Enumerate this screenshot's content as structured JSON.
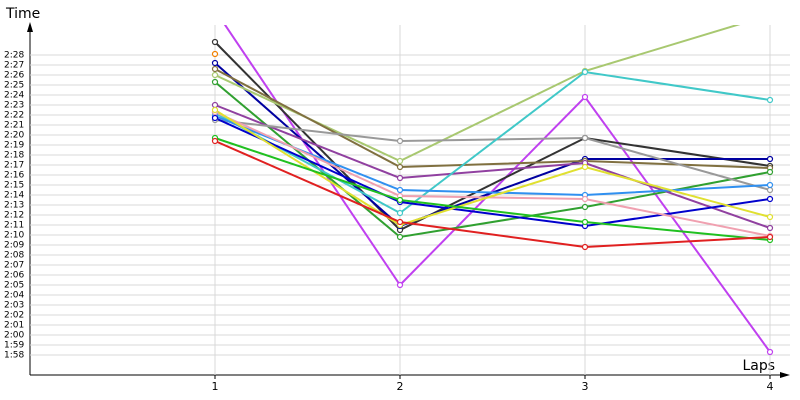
{
  "chart_data": {
    "type": "line",
    "y_label": "Time",
    "x_label": "Laps",
    "xlim": [
      0,
      4
    ],
    "xticks": [
      1,
      2,
      3,
      4
    ],
    "ylim": [
      116,
      151
    ],
    "yticks": [
      {
        "value": 118,
        "label": "1:58"
      },
      {
        "value": 119,
        "label": "1:59"
      },
      {
        "value": 120,
        "label": "2:00"
      },
      {
        "value": 121,
        "label": "2:01"
      },
      {
        "value": 122,
        "label": "2:02"
      },
      {
        "value": 123,
        "label": "2:03"
      },
      {
        "value": 124,
        "label": "2:04"
      },
      {
        "value": 125,
        "label": "2:05"
      },
      {
        "value": 126,
        "label": "2:06"
      },
      {
        "value": 127,
        "label": "2:07"
      },
      {
        "value": 128,
        "label": "2:08"
      },
      {
        "value": 129,
        "label": "2:09"
      },
      {
        "value": 130,
        "label": "2:10"
      },
      {
        "value": 131,
        "label": "2:11"
      },
      {
        "value": 132,
        "label": "2:12"
      },
      {
        "value": 133,
        "label": "2:13"
      },
      {
        "value": 134,
        "label": "2:14"
      },
      {
        "value": 135,
        "label": "2:15"
      },
      {
        "value": 136,
        "label": "2:16"
      },
      {
        "value": 137,
        "label": "2:17"
      },
      {
        "value": 138,
        "label": "2:18"
      },
      {
        "value": 139,
        "label": "2:19"
      },
      {
        "value": 140,
        "label": "2:20"
      },
      {
        "value": 141,
        "label": "2:21"
      },
      {
        "value": 142,
        "label": "2:22"
      },
      {
        "value": 143,
        "label": "2:23"
      },
      {
        "value": 144,
        "label": "2:24"
      },
      {
        "value": 145,
        "label": "2:25"
      },
      {
        "value": 146,
        "label": "2:26"
      },
      {
        "value": 147,
        "label": "2:27"
      },
      {
        "value": 148,
        "label": "2:28"
      }
    ],
    "grid": true,
    "x": [
      1,
      2,
      3,
      4
    ],
    "series": [
      {
        "color": "#c040f0",
        "values": [
          152.5,
          125.0,
          143.8,
          118.3
        ]
      },
      {
        "color": "#333333",
        "values": [
          149.3,
          130.5,
          139.7,
          136.9
        ]
      },
      {
        "color": "#f08000",
        "values": [
          148.1,
          null,
          null,
          null
        ]
      },
      {
        "color": "#0000a0",
        "values": [
          147.2,
          130.9,
          137.6,
          137.6
        ]
      },
      {
        "color": "#a8c870",
        "values": [
          146.0,
          137.4,
          146.4,
          152.0
        ]
      },
      {
        "color": "#807040",
        "values": [
          146.6,
          136.8,
          137.4,
          136.7
        ]
      },
      {
        "color": "#30a030",
        "values": [
          145.3,
          129.8,
          132.8,
          136.3
        ]
      },
      {
        "color": "#9040a0",
        "values": [
          143.0,
          135.7,
          137.2,
          130.7
        ]
      },
      {
        "color": "#999999",
        "values": [
          141.5,
          139.4,
          139.7,
          134.5
        ]
      },
      {
        "color": "#40c8c8",
        "values": [
          142.2,
          132.2,
          146.3,
          143.5
        ]
      },
      {
        "color": "#3090f0",
        "values": [
          141.9,
          134.5,
          134.0,
          135.0
        ]
      },
      {
        "color": "#0000cc",
        "values": [
          141.7,
          133.3,
          130.9,
          133.6
        ]
      },
      {
        "color": "#f0a0b0",
        "values": [
          142.3,
          133.9,
          133.6,
          129.9
        ]
      },
      {
        "color": "#e0e030",
        "values": [
          142.5,
          131.0,
          136.8,
          131.8
        ]
      },
      {
        "color": "#20c020",
        "values": [
          139.7,
          133.5,
          131.3,
          129.5
        ]
      },
      {
        "color": "#e02020",
        "values": [
          139.4,
          131.3,
          128.8,
          129.8
        ]
      }
    ]
  }
}
